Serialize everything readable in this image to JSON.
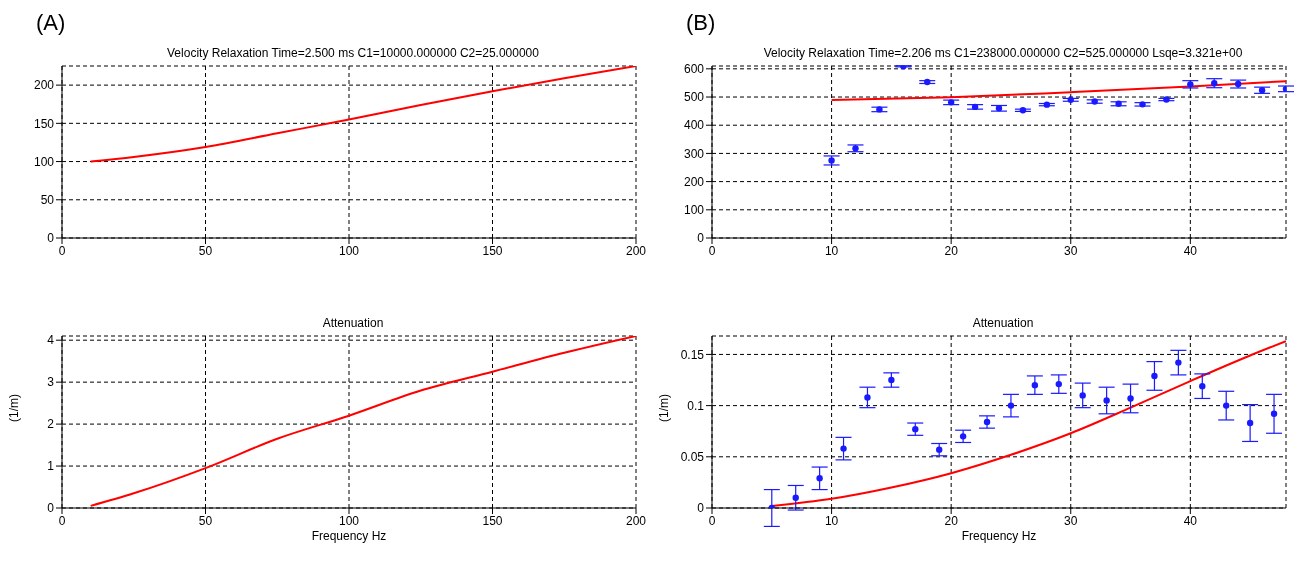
{
  "chart_data": [
    {
      "type": "line",
      "title": "Velocity Relaxation Time=2.500 ms C1=10000.000000 C2=25.000000",
      "annotations": [
        "(A)"
      ],
      "xlim": [
        0,
        200
      ],
      "xticks": [
        0,
        50,
        100,
        150,
        200
      ],
      "ylim": [
        0,
        225
      ],
      "yticks": [
        0,
        50,
        100,
        150,
        200
      ],
      "grid": true,
      "series": [
        {
          "color": "#ff0000",
          "x": [
            10,
            25,
            50,
            75,
            100,
            125,
            150,
            175,
            200
          ],
          "values": [
            100,
            106,
            119,
            137,
            155,
            174,
            192,
            209,
            225
          ]
        }
      ]
    },
    {
      "type": "scatter",
      "title": "Velocity Relaxation Time=2.206 ms C1=238000.000000 C2=525.000000 Lsqe=3.321e+00",
      "annotations": [
        "(B)"
      ],
      "xlim": [
        0,
        48
      ],
      "xticks": [
        0,
        10,
        20,
        30,
        40
      ],
      "ylim": [
        0,
        610
      ],
      "yticks": [
        0,
        100,
        200,
        300,
        400,
        500,
        600
      ],
      "grid": true,
      "series": [
        {
          "type": "line",
          "color": "#ff0000",
          "x": [
            10,
            20,
            30,
            40,
            48
          ],
          "values": [
            489,
            499,
            517,
            537,
            556
          ]
        },
        {
          "color": "#1a1aff",
          "marker": "circle",
          "x": [
            10,
            12,
            14,
            16,
            18,
            20,
            22,
            24,
            26,
            28,
            30,
            32,
            34,
            36,
            38,
            40,
            42,
            44,
            46,
            48
          ],
          "values": [
            275,
            318,
            456,
            609,
            553,
            481,
            465,
            460,
            453,
            473,
            490,
            484,
            476,
            474,
            491,
            545,
            549,
            546,
            524,
            529
          ],
          "errors": [
            16,
            12,
            8,
            2,
            5,
            8,
            8,
            10,
            4,
            4,
            5,
            6,
            7,
            6,
            4,
            13,
            16,
            14,
            11,
            10
          ]
        }
      ]
    },
    {
      "type": "line",
      "title": "Attenuation",
      "xlabel": "Frequency Hz",
      "ylabel": "(1/m)",
      "xlim": [
        0,
        200
      ],
      "xticks": [
        0,
        50,
        100,
        150,
        200
      ],
      "ylim": [
        0,
        4.1
      ],
      "yticks": [
        0,
        1,
        2,
        3,
        4
      ],
      "grid": true,
      "series": [
        {
          "color": "#ff0000",
          "x": [
            10,
            25,
            50,
            75,
            100,
            125,
            150,
            175,
            200
          ],
          "values": [
            0.05,
            0.35,
            0.95,
            1.65,
            2.2,
            2.8,
            3.25,
            3.7,
            4.1
          ]
        }
      ]
    },
    {
      "type": "scatter",
      "title": "Attenuation",
      "xlabel": "Frequency Hz",
      "ylabel": "(1/m)",
      "xlim": [
        0,
        48
      ],
      "xticks": [
        0,
        10,
        20,
        30,
        40
      ],
      "ylim": [
        0,
        0.168
      ],
      "yticks": [
        0,
        0.05,
        0.1,
        0.15
      ],
      "grid": true,
      "series": [
        {
          "type": "line",
          "color": "#ff0000",
          "x": [
            5,
            10,
            15,
            20,
            25,
            30,
            35,
            40,
            45,
            48
          ],
          "values": [
            0.002,
            0.009,
            0.02,
            0.034,
            0.052,
            0.073,
            0.098,
            0.124,
            0.149,
            0.163
          ]
        },
        {
          "color": "#1a1aff",
          "marker": "circle",
          "x": [
            5,
            7,
            9,
            11,
            13,
            15,
            17,
            19,
            21,
            23,
            25,
            27,
            29,
            31,
            33,
            35,
            37,
            39,
            41,
            43,
            45,
            47
          ],
          "values": [
            0,
            0.01,
            0.029,
            0.058,
            0.108,
            0.125,
            0.077,
            0.057,
            0.07,
            0.084,
            0.1,
            0.12,
            0.121,
            0.11,
            0.105,
            0.107,
            0.129,
            0.142,
            0.119,
            0.1,
            0.083,
            0.092
          ],
          "errors": [
            0.018,
            0.012,
            0.011,
            0.011,
            0.01,
            0.007,
            0.006,
            0.006,
            0.006,
            0.006,
            0.011,
            0.009,
            0.009,
            0.012,
            0.013,
            0.014,
            0.014,
            0.012,
            0.012,
            0.014,
            0.018,
            0.019
          ]
        }
      ]
    }
  ]
}
